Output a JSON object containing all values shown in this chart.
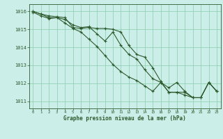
{
  "title": "Graphe pression niveau de la mer (hPa)",
  "background_color": "#cbeee8",
  "line_color": "#2d5a2d",
  "grid_color": "#88ccaa",
  "xlim": [
    -0.5,
    23.5
  ],
  "ylim": [
    1010.6,
    1016.4
  ],
  "yticks": [
    1011,
    1012,
    1013,
    1014,
    1015,
    1016
  ],
  "xticks": [
    0,
    1,
    2,
    3,
    4,
    5,
    6,
    7,
    8,
    9,
    10,
    11,
    12,
    13,
    14,
    15,
    16,
    17,
    18,
    19,
    20,
    21,
    22,
    23
  ],
  "series": [
    [
      1016.0,
      1015.85,
      1015.75,
      1015.7,
      1015.65,
      1015.1,
      1015.05,
      1015.1,
      1015.05,
      1015.05,
      1015.0,
      1014.85,
      1014.1,
      1013.6,
      1013.45,
      1012.85,
      1012.1,
      1011.5,
      1011.5,
      1011.5,
      1011.2,
      1011.2,
      1012.05,
      1011.55
    ],
    [
      1015.95,
      1015.75,
      1015.6,
      1015.65,
      1015.55,
      1015.25,
      1015.1,
      1015.15,
      1014.75,
      1014.35,
      1014.85,
      1014.1,
      1013.6,
      1013.35,
      1012.75,
      1012.25,
      1012.05,
      1011.5,
      1011.5,
      1011.35,
      1011.2,
      1011.2,
      1012.05,
      1011.55
    ],
    [
      1016.0,
      1015.85,
      1015.65,
      1015.65,
      1015.35,
      1015.05,
      1014.85,
      1014.45,
      1014.05,
      1013.55,
      1013.05,
      1012.65,
      1012.35,
      1012.15,
      1011.85,
      1011.55,
      1012.05,
      1011.75,
      1012.05,
      1011.55,
      1011.2,
      1011.2,
      1012.05,
      1011.55
    ]
  ]
}
